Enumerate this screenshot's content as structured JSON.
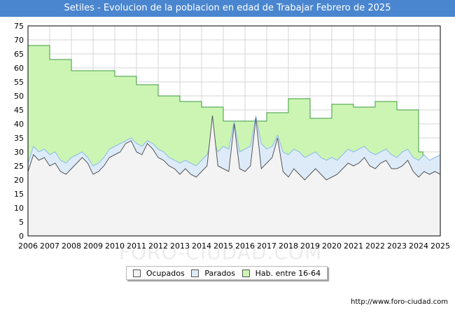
{
  "title": "Setiles - Evolucion de la poblacion en edad de Trabajar Febrero de 2025",
  "footer": "http://www.foro-ciudad.com",
  "watermark": "FORO-CIUDAD.COM",
  "colors": {
    "title_bg": "#4a86cf",
    "hab_fill": "#ccf5b4",
    "hab_line": "#3d9a3d",
    "parados_fill": "#ddebf9",
    "parados_line": "#8bbce8",
    "ocupados_fill": "#f3f3f3",
    "ocupados_line": "#555555"
  },
  "legend": [
    {
      "label": "Ocupados",
      "key": "ocupados"
    },
    {
      "label": "Parados",
      "key": "parados"
    },
    {
      "label": "Hab. entre 16-64",
      "key": "hab"
    }
  ],
  "chart_data": {
    "type": "area",
    "title": "Setiles - Evolucion de la poblacion en edad de Trabajar Febrero de 2025",
    "xlabel": "",
    "ylabel": "",
    "xlim": [
      2006,
      2025
    ],
    "ylim": [
      0,
      75
    ],
    "grid": true,
    "legend_position": "bottom",
    "x_ticks": [
      "2006",
      "2007",
      "2008",
      "2009",
      "2010",
      "2011",
      "2012",
      "2013",
      "2014",
      "2015",
      "2016",
      "2017",
      "2018",
      "2019",
      "2020",
      "2021",
      "2022",
      "2023",
      "2024",
      "2025"
    ],
    "y_ticks": [
      0,
      5,
      10,
      15,
      20,
      25,
      30,
      35,
      40,
      45,
      50,
      55,
      60,
      65,
      70,
      75
    ],
    "series": [
      {
        "name": "Hab. entre 16-64",
        "x": [
          2006,
          2007,
          2008,
          2010,
          2011,
          2012,
          2013,
          2014,
          2015,
          2016,
          2017,
          2018,
          2019,
          2020,
          2021,
          2022,
          2023,
          2024
        ],
        "values": [
          68,
          63,
          59,
          57,
          54,
          50,
          48,
          46,
          41,
          41,
          44,
          49,
          42,
          47,
          46,
          48,
          45,
          30
        ]
      },
      {
        "name": "Parados",
        "x": [
          2006.0,
          2006.25,
          2006.5,
          2006.75,
          2007.0,
          2007.25,
          2007.5,
          2007.75,
          2008.0,
          2008.25,
          2008.5,
          2008.75,
          2009.0,
          2009.25,
          2009.5,
          2009.75,
          2010.0,
          2010.25,
          2010.5,
          2010.75,
          2011.0,
          2011.25,
          2011.5,
          2011.75,
          2012.0,
          2012.25,
          2012.5,
          2012.75,
          2013.0,
          2013.25,
          2013.5,
          2013.75,
          2014.0,
          2014.25,
          2014.5,
          2014.75,
          2015.0,
          2015.25,
          2015.5,
          2015.75,
          2016.0,
          2016.25,
          2016.5,
          2016.75,
          2017.0,
          2017.25,
          2017.5,
          2017.75,
          2018.0,
          2018.25,
          2018.5,
          2018.75,
          2019.0,
          2019.25,
          2019.5,
          2019.75,
          2020.0,
          2020.25,
          2020.5,
          2020.75,
          2021.0,
          2021.25,
          2021.5,
          2021.75,
          2022.0,
          2022.25,
          2022.5,
          2022.75,
          2023.0,
          2023.25,
          2023.5,
          2023.75,
          2024.0,
          2024.25,
          2024.5,
          2024.75,
          2025.0
        ],
        "values": [
          26,
          32,
          30,
          31,
          29,
          30,
          27,
          26,
          28,
          29,
          30,
          28,
          25,
          26,
          28,
          31,
          32,
          33,
          34,
          35,
          33,
          32,
          34,
          33,
          31,
          30,
          28,
          27,
          26,
          27,
          26,
          25,
          27,
          29,
          35,
          30,
          32,
          31,
          41,
          30,
          31,
          32,
          43,
          33,
          31,
          32,
          36,
          30,
          29,
          31,
          30,
          28,
          29,
          30,
          28,
          27,
          28,
          27,
          29,
          31,
          30,
          31,
          32,
          30,
          29,
          30,
          31,
          29,
          28,
          30,
          31,
          28,
          27,
          29,
          27,
          28,
          29
        ]
      },
      {
        "name": "Ocupados",
        "x": [
          2006.0,
          2006.25,
          2006.5,
          2006.75,
          2007.0,
          2007.25,
          2007.5,
          2007.75,
          2008.0,
          2008.25,
          2008.5,
          2008.75,
          2009.0,
          2009.25,
          2009.5,
          2009.75,
          2010.0,
          2010.25,
          2010.5,
          2010.75,
          2011.0,
          2011.25,
          2011.5,
          2011.75,
          2012.0,
          2012.25,
          2012.5,
          2012.75,
          2013.0,
          2013.25,
          2013.5,
          2013.75,
          2014.0,
          2014.25,
          2014.5,
          2014.75,
          2015.0,
          2015.25,
          2015.5,
          2015.75,
          2016.0,
          2016.25,
          2016.5,
          2016.75,
          2017.0,
          2017.25,
          2017.5,
          2017.75,
          2018.0,
          2018.25,
          2018.5,
          2018.75,
          2019.0,
          2019.25,
          2019.5,
          2019.75,
          2020.0,
          2020.25,
          2020.5,
          2020.75,
          2021.0,
          2021.25,
          2021.5,
          2021.75,
          2022.0,
          2022.25,
          2022.5,
          2022.75,
          2023.0,
          2023.25,
          2023.5,
          2023.75,
          2024.0,
          2024.25,
          2024.5,
          2024.75,
          2025.0
        ],
        "values": [
          23,
          29,
          27,
          28,
          25,
          26,
          23,
          22,
          24,
          26,
          28,
          26,
          22,
          23,
          25,
          28,
          29,
          30,
          33,
          34,
          30,
          29,
          33,
          31,
          28,
          27,
          25,
          24,
          22,
          24,
          22,
          21,
          23,
          25,
          43,
          25,
          24,
          23,
          40,
          24,
          23,
          25,
          42,
          24,
          26,
          28,
          35,
          23,
          21,
          24,
          22,
          20,
          22,
          24,
          22,
          20,
          21,
          22,
          24,
          26,
          25,
          26,
          28,
          25,
          24,
          26,
          27,
          24,
          24,
          25,
          27,
          23,
          21,
          23,
          22,
          23,
          22
        ]
      }
    ]
  }
}
